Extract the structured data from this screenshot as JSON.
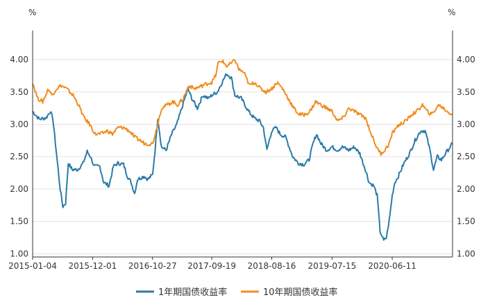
{
  "chart_data": {
    "type": "line",
    "y_unit_left": "%",
    "y_unit_right": "%",
    "ylim": [
      0.95,
      4.45
    ],
    "yticks": [
      "1.00",
      "1.50",
      "2.00",
      "2.50",
      "3.00",
      "3.50",
      "4.00"
    ],
    "x_start": "2015-01-04",
    "x_end": "2021-05-10",
    "xticks": [
      "2015-01-04",
      "2015-12-01",
      "2016-10-27",
      "2017-09-19",
      "2018-08-16",
      "2019-07-15",
      "2020-06-11"
    ],
    "grid": true,
    "legend_position": "bottom",
    "colors": {
      "1y": "#2a7aa8",
      "10y": "#f28c1e"
    },
    "series": [
      {
        "name": "1年期国债收益率",
        "color": "#2a7aa8",
        "points": [
          [
            "2015-01-04",
            3.2
          ],
          [
            "2015-02-10",
            3.08
          ],
          [
            "2015-03-20",
            3.1
          ],
          [
            "2015-04-10",
            3.2
          ],
          [
            "2015-04-25",
            3.1
          ],
          [
            "2015-05-10",
            2.7
          ],
          [
            "2015-05-25",
            2.3
          ],
          [
            "2015-06-05",
            2.0
          ],
          [
            "2015-06-20",
            1.73
          ],
          [
            "2015-07-05",
            1.78
          ],
          [
            "2015-07-20",
            2.4
          ],
          [
            "2015-08-10",
            2.3
          ],
          [
            "2015-09-10",
            2.3
          ],
          [
            "2015-10-10",
            2.4
          ],
          [
            "2015-11-01",
            2.58
          ],
          [
            "2015-11-20",
            2.5
          ],
          [
            "2015-12-10",
            2.35
          ],
          [
            "2016-01-10",
            2.35
          ],
          [
            "2016-02-01",
            2.1
          ],
          [
            "2016-03-01",
            2.05
          ],
          [
            "2016-03-25",
            2.35
          ],
          [
            "2016-04-20",
            2.4
          ],
          [
            "2016-05-20",
            2.38
          ],
          [
            "2016-06-10",
            2.2
          ],
          [
            "2016-07-01",
            2.1
          ],
          [
            "2016-07-20",
            1.93
          ],
          [
            "2016-08-05",
            2.15
          ],
          [
            "2016-09-10",
            2.2
          ],
          [
            "2016-10-01",
            2.15
          ],
          [
            "2016-10-27",
            2.22
          ],
          [
            "2016-11-10",
            2.6
          ],
          [
            "2016-11-25",
            3.1
          ],
          [
            "2016-12-15",
            2.65
          ],
          [
            "2017-01-10",
            2.6
          ],
          [
            "2017-02-10",
            2.85
          ],
          [
            "2017-03-10",
            3.0
          ],
          [
            "2017-04-01",
            3.2
          ],
          [
            "2017-05-10",
            3.55
          ],
          [
            "2017-06-01",
            3.4
          ],
          [
            "2017-07-01",
            3.25
          ],
          [
            "2017-08-01",
            3.45
          ],
          [
            "2017-09-01",
            3.4
          ],
          [
            "2017-09-19",
            3.45
          ],
          [
            "2017-10-20",
            3.5
          ],
          [
            "2017-11-15",
            3.65
          ],
          [
            "2017-12-10",
            3.78
          ],
          [
            "2018-01-05",
            3.72
          ],
          [
            "2018-01-25",
            3.45
          ],
          [
            "2018-03-01",
            3.4
          ],
          [
            "2018-04-10",
            3.2
          ],
          [
            "2018-05-10",
            3.1
          ],
          [
            "2018-06-10",
            3.05
          ],
          [
            "2018-07-01",
            2.95
          ],
          [
            "2018-07-20",
            2.6
          ],
          [
            "2018-08-16",
            2.9
          ],
          [
            "2018-09-10",
            2.95
          ],
          [
            "2018-10-01",
            2.85
          ],
          [
            "2018-11-01",
            2.8
          ],
          [
            "2018-12-10",
            2.5
          ],
          [
            "2019-01-10",
            2.4
          ],
          [
            "2019-02-10",
            2.38
          ],
          [
            "2019-03-10",
            2.45
          ],
          [
            "2019-04-01",
            2.7
          ],
          [
            "2019-04-20",
            2.85
          ],
          [
            "2019-05-15",
            2.7
          ],
          [
            "2019-06-15",
            2.6
          ],
          [
            "2019-07-15",
            2.65
          ],
          [
            "2019-08-15",
            2.6
          ],
          [
            "2019-09-10",
            2.65
          ],
          [
            "2019-10-15",
            2.6
          ],
          [
            "2019-11-15",
            2.65
          ],
          [
            "2019-12-15",
            2.55
          ],
          [
            "2020-01-15",
            2.3
          ],
          [
            "2020-02-05",
            2.1
          ],
          [
            "2020-03-01",
            2.05
          ],
          [
            "2020-03-20",
            1.9
          ],
          [
            "2020-04-05",
            1.35
          ],
          [
            "2020-04-25",
            1.2
          ],
          [
            "2020-05-10",
            1.25
          ],
          [
            "2020-05-25",
            1.5
          ],
          [
            "2020-06-11",
            1.9
          ],
          [
            "2020-06-25",
            2.1
          ],
          [
            "2020-07-15",
            2.2
          ],
          [
            "2020-08-15",
            2.4
          ],
          [
            "2020-09-15",
            2.55
          ],
          [
            "2020-10-15",
            2.75
          ],
          [
            "2020-11-15",
            2.9
          ],
          [
            "2020-12-10",
            2.9
          ],
          [
            "2021-01-05",
            2.6
          ],
          [
            "2021-01-25",
            2.3
          ],
          [
            "2021-02-15",
            2.5
          ],
          [
            "2021-03-10",
            2.45
          ],
          [
            "2021-04-01",
            2.55
          ],
          [
            "2021-05-10",
            2.7
          ]
        ]
      },
      {
        "name": "10年期国债收益率",
        "color": "#f28c1e",
        "points": [
          [
            "2015-01-04",
            3.65
          ],
          [
            "2015-02-01",
            3.4
          ],
          [
            "2015-03-01",
            3.35
          ],
          [
            "2015-04-01",
            3.55
          ],
          [
            "2015-04-20",
            3.45
          ],
          [
            "2015-05-15",
            3.55
          ],
          [
            "2015-06-10",
            3.6
          ],
          [
            "2015-07-10",
            3.55
          ],
          [
            "2015-08-15",
            3.45
          ],
          [
            "2015-09-15",
            3.3
          ],
          [
            "2015-10-15",
            3.1
          ],
          [
            "2015-11-15",
            3.0
          ],
          [
            "2015-12-15",
            2.85
          ],
          [
            "2016-01-15",
            2.85
          ],
          [
            "2016-02-20",
            2.9
          ],
          [
            "2016-03-20",
            2.85
          ],
          [
            "2016-04-20",
            2.95
          ],
          [
            "2016-05-20",
            2.95
          ],
          [
            "2016-06-20",
            2.9
          ],
          [
            "2016-07-20",
            2.8
          ],
          [
            "2016-08-20",
            2.75
          ],
          [
            "2016-09-15",
            2.7
          ],
          [
            "2016-10-27",
            2.7
          ],
          [
            "2016-11-20",
            2.95
          ],
          [
            "2016-12-15",
            3.25
          ],
          [
            "2017-01-15",
            3.3
          ],
          [
            "2017-02-15",
            3.35
          ],
          [
            "2017-03-15",
            3.3
          ],
          [
            "2017-04-15",
            3.4
          ],
          [
            "2017-05-15",
            3.6
          ],
          [
            "2017-06-15",
            3.55
          ],
          [
            "2017-07-15",
            3.58
          ],
          [
            "2017-08-15",
            3.62
          ],
          [
            "2017-09-19",
            3.65
          ],
          [
            "2017-10-10",
            3.75
          ],
          [
            "2017-10-25",
            3.95
          ],
          [
            "2017-11-15",
            3.98
          ],
          [
            "2017-12-10",
            3.9
          ],
          [
            "2018-01-10",
            3.95
          ],
          [
            "2018-01-25",
            4.0
          ],
          [
            "2018-02-15",
            3.85
          ],
          [
            "2018-03-15",
            3.8
          ],
          [
            "2018-04-15",
            3.6
          ],
          [
            "2018-05-15",
            3.65
          ],
          [
            "2018-06-15",
            3.55
          ],
          [
            "2018-07-15",
            3.5
          ],
          [
            "2018-08-16",
            3.55
          ],
          [
            "2018-09-15",
            3.65
          ],
          [
            "2018-10-15",
            3.55
          ],
          [
            "2018-11-15",
            3.4
          ],
          [
            "2018-12-15",
            3.25
          ],
          [
            "2019-01-15",
            3.15
          ],
          [
            "2019-02-15",
            3.15
          ],
          [
            "2019-03-15",
            3.2
          ],
          [
            "2019-04-15",
            3.35
          ],
          [
            "2019-05-15",
            3.3
          ],
          [
            "2019-06-15",
            3.25
          ],
          [
            "2019-07-15",
            3.2
          ],
          [
            "2019-08-15",
            3.05
          ],
          [
            "2019-09-15",
            3.1
          ],
          [
            "2019-10-15",
            3.25
          ],
          [
            "2019-11-15",
            3.2
          ],
          [
            "2019-12-15",
            3.15
          ],
          [
            "2020-01-15",
            3.1
          ],
          [
            "2020-02-10",
            2.9
          ],
          [
            "2020-03-01",
            2.75
          ],
          [
            "2020-03-25",
            2.6
          ],
          [
            "2020-04-10",
            2.55
          ],
          [
            "2020-05-01",
            2.6
          ],
          [
            "2020-05-25",
            2.7
          ],
          [
            "2020-06-11",
            2.85
          ],
          [
            "2020-07-01",
            2.95
          ],
          [
            "2020-07-25",
            3.0
          ],
          [
            "2020-08-25",
            3.05
          ],
          [
            "2020-09-25",
            3.15
          ],
          [
            "2020-10-25",
            3.2
          ],
          [
            "2020-11-25",
            3.3
          ],
          [
            "2020-12-20",
            3.2
          ],
          [
            "2021-01-15",
            3.15
          ],
          [
            "2021-02-10",
            3.25
          ],
          [
            "2021-02-25",
            3.3
          ],
          [
            "2021-03-20",
            3.25
          ],
          [
            "2021-04-10",
            3.2
          ],
          [
            "2021-05-10",
            3.15
          ]
        ]
      }
    ]
  }
}
